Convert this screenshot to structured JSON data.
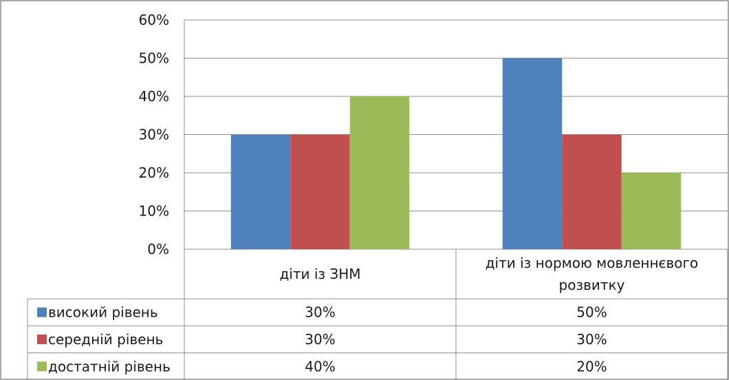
{
  "chart_data": {
    "type": "bar",
    "categories": [
      "діти із ЗНМ",
      "діти із нормою мовленнєвого розвитку"
    ],
    "category_lines": [
      [
        "діти із ЗНМ"
      ],
      [
        "діти із нормою мовленнєвого",
        "розвитку"
      ]
    ],
    "series": [
      {
        "name": "високий рівень",
        "values": [
          30,
          50
        ],
        "labels": [
          "30%",
          "50%"
        ],
        "color": "#4F81BD"
      },
      {
        "name": "середній рівень",
        "values": [
          30,
          30
        ],
        "labels": [
          "30%",
          "30%"
        ],
        "color": "#C0504D"
      },
      {
        "name": "достатній рівень",
        "values": [
          40,
          20
        ],
        "labels": [
          "40%",
          "20%"
        ],
        "color": "#9BBB59"
      }
    ],
    "yticks": [
      "0%",
      "10%",
      "20%",
      "30%",
      "40%",
      "50%",
      "60%"
    ],
    "ylim": [
      0,
      60
    ],
    "grid": true,
    "legend": "data-table"
  }
}
